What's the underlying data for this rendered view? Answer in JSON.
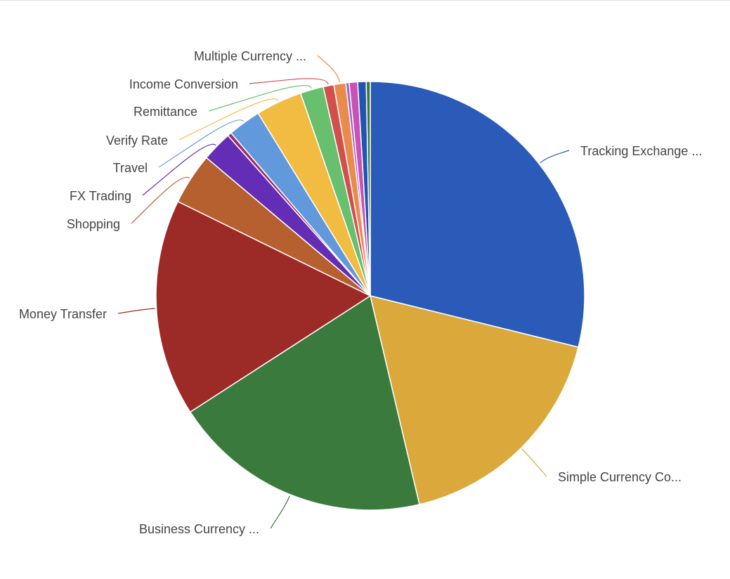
{
  "chart_data": {
    "type": "pie",
    "title": "",
    "legend": "labels with leader lines",
    "start_angle": "top, clockwise",
    "slices": [
      {
        "name": "Tracking Exchange ...",
        "value": 28.9,
        "color": "#2a5bb8"
      },
      {
        "name": "Simple Currency Co...",
        "value": 17.5,
        "color": "#dba83c"
      },
      {
        "name": "Business Currency ...",
        "value": 19.6,
        "color": "#3a7a3d"
      },
      {
        "name": "Money Transfer",
        "value": 16.4,
        "color": "#9c2b27"
      },
      {
        "name": "Shopping",
        "value": 3.9,
        "color": "#b5602e"
      },
      {
        "name": "FX Trading",
        "value": 2.3,
        "color": "#642db5"
      },
      {
        "value": 0.3,
        "color": "#9c2c6a"
      },
      {
        "name": "Travel",
        "value": 2.5,
        "color": "#6299dd"
      },
      {
        "name": "Verify Rate",
        "value": 3.5,
        "color": "#f2bc43"
      },
      {
        "name": "Remittance",
        "value": 1.75,
        "color": "#68bf6d"
      },
      {
        "name": "Income Conversion",
        "value": 0.8,
        "color": "#d0504b"
      },
      {
        "name": "Multiple Currency ...",
        "value": 0.9,
        "color": "#ea8b4e"
      },
      {
        "value": 0.25,
        "color": "#9a5fd6"
      },
      {
        "value": 0.64,
        "color": "#c853b5"
      },
      {
        "value": 0.64,
        "color": "#2155b3"
      },
      {
        "value": 0.3,
        "color": "#3a7a3d"
      }
    ]
  }
}
